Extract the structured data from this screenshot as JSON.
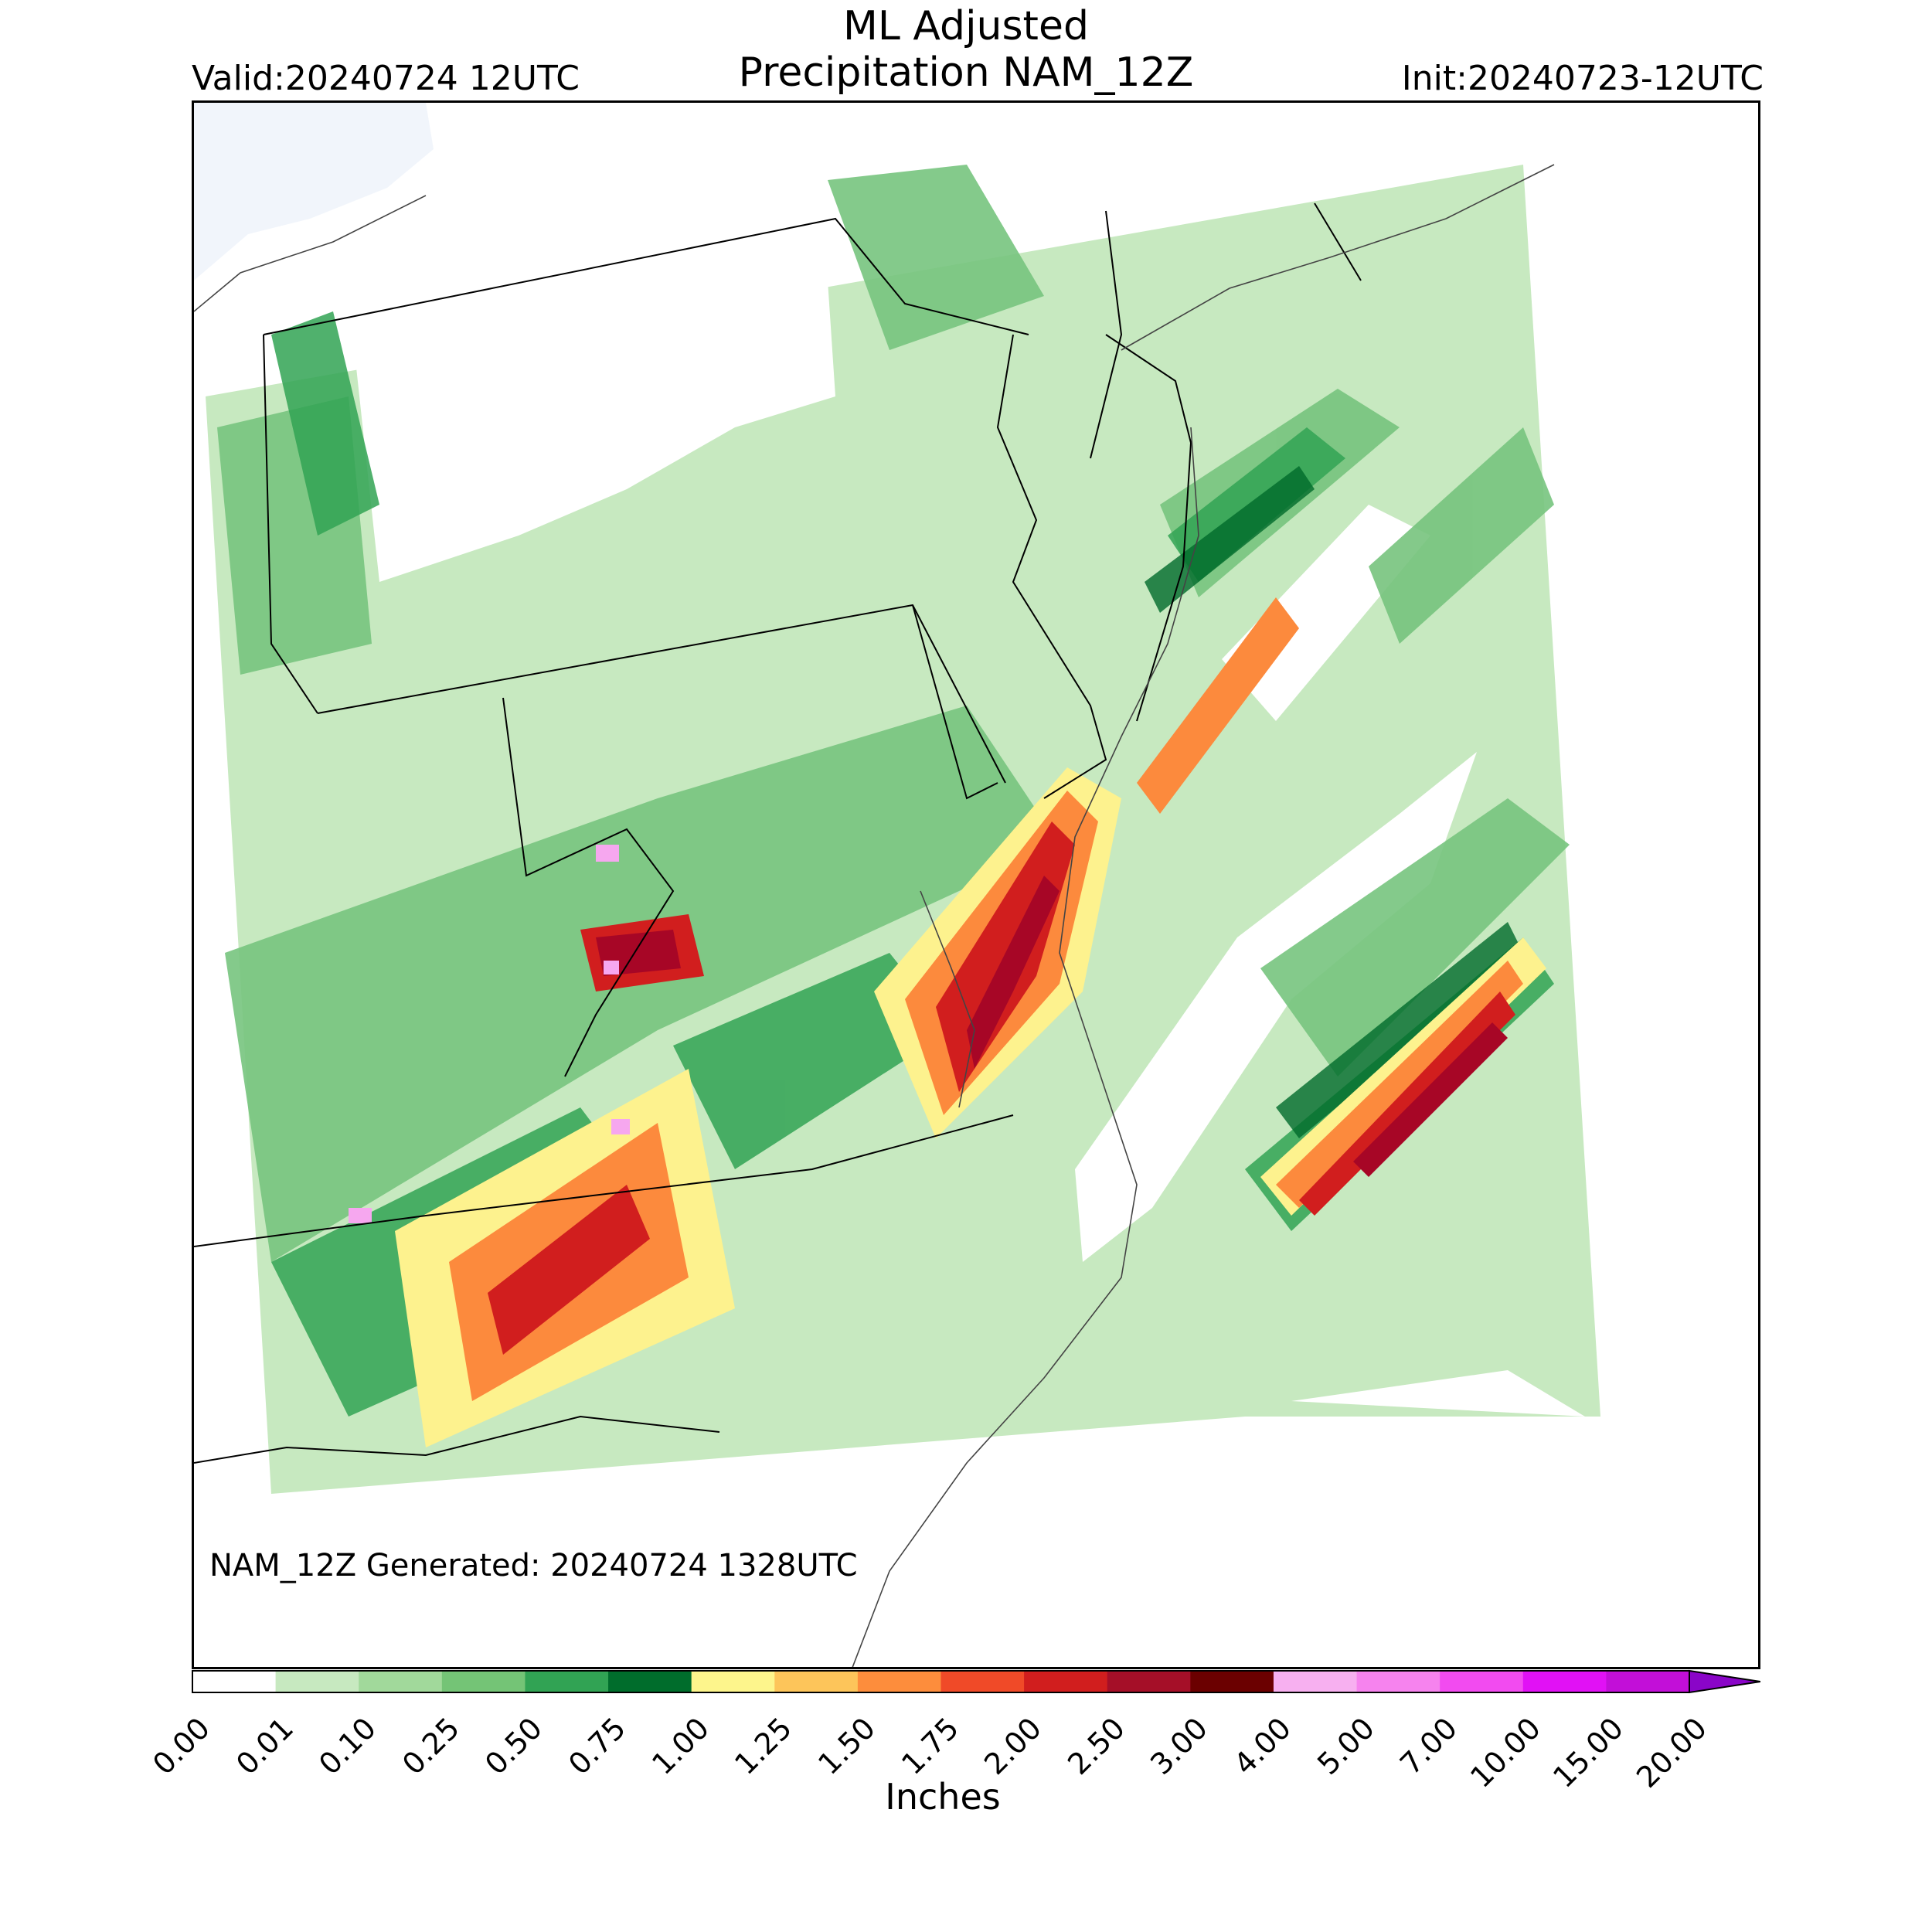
{
  "header": {
    "title_line1": "ML Adjusted",
    "title_line2": "Precipitation NAM_12Z",
    "valid": "Valid:20240724 12UTC",
    "init": "Init:20240723-12UTC"
  },
  "map": {
    "generated_note": "NAM_12Z Generated: 20240724 1328UTC",
    "bands": [
      {
        "category": "0.25-0.50",
        "color": "#77c47e"
      },
      {
        "category": "0.75-1.00",
        "color": "#006a2a"
      },
      {
        "category": "1.00-1.25",
        "color": "#fdf28e"
      },
      {
        "category": "1.50-1.75",
        "color": "#fc8a3d"
      },
      {
        "category": "2.00-2.50",
        "color": "#d11e1e"
      },
      {
        "category": "2.50-3.00",
        "color": "#a70626"
      },
      {
        "category": "4.00-5.00",
        "color": "#f6a7ef"
      }
    ]
  },
  "colorbar": {
    "label": "Inches",
    "ticks": [
      "0.00",
      "0.01",
      "0.10",
      "0.25",
      "0.50",
      "0.75",
      "1.00",
      "1.25",
      "1.50",
      "1.75",
      "2.00",
      "2.50",
      "3.00",
      "4.00",
      "5.00",
      "7.00",
      "10.00",
      "15.00",
      "20.00"
    ],
    "colors": [
      "#ffffff",
      "#c7e9c0",
      "#a1d99b",
      "#74c476",
      "#31a354",
      "#006d2c",
      "#fdf58c",
      "#fdc55a",
      "#fd8d3c",
      "#f04a28",
      "#d11e1e",
      "#a50f28",
      "#6b0000",
      "#f7b0f0",
      "#f683ee",
      "#f24bf0",
      "#e111f5",
      "#c20fd8",
      "#8a05c8"
    ]
  }
}
